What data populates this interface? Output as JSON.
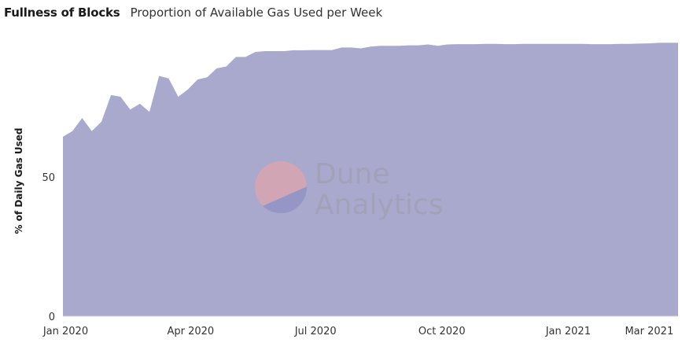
{
  "header": {
    "title": "Fullness of Blocks",
    "subtitle": "Proportion of Available Gas Used per Week"
  },
  "watermark": {
    "line1": "Dune",
    "line2": "Analytics"
  },
  "colors": {
    "area": "#a9a9cd",
    "watermark_top": "#e8a3a8",
    "watermark_bottom": "#8f8fc3"
  },
  "chart_data": {
    "type": "area",
    "title": "Fullness of Blocks",
    "subtitle": "Proportion of Available Gas Used per Week",
    "xlabel": "",
    "ylabel": "% of Daily Gas Used",
    "ylim": [
      0,
      100
    ],
    "xlim": [
      "2019-12-30",
      "2021-03-22"
    ],
    "grid": false,
    "y_ticks": [
      0,
      50
    ],
    "x_ticks": [
      {
        "date": "2020-01-01",
        "label": "Jan 2020"
      },
      {
        "date": "2020-04-01",
        "label": "Apr 2020"
      },
      {
        "date": "2020-07-01",
        "label": "Jul 2020"
      },
      {
        "date": "2020-10-01",
        "label": "Oct 2020"
      },
      {
        "date": "2021-01-01",
        "label": "Jan 2021"
      },
      {
        "date": "2021-03-01",
        "label": "Mar 2021"
      }
    ],
    "series": [
      {
        "values": [
          [
            "2019-12-30",
            64.5
          ],
          [
            "2020-01-06",
            66.5
          ],
          [
            "2020-01-13",
            71.2
          ],
          [
            "2020-01-20",
            66.5
          ],
          [
            "2020-01-27",
            69.8
          ],
          [
            "2020-02-03",
            79.4
          ],
          [
            "2020-02-10",
            78.8
          ],
          [
            "2020-02-17",
            74.2
          ],
          [
            "2020-02-24",
            76.3
          ],
          [
            "2020-03-02",
            73.4
          ],
          [
            "2020-03-09",
            86.3
          ],
          [
            "2020-03-16",
            85.4
          ],
          [
            "2020-03-23",
            78.8
          ],
          [
            "2020-03-30",
            81.4
          ],
          [
            "2020-04-06",
            85.0
          ],
          [
            "2020-04-13",
            85.8
          ],
          [
            "2020-04-20",
            89.0
          ],
          [
            "2020-04-27",
            89.7
          ],
          [
            "2020-05-04",
            93.1
          ],
          [
            "2020-05-11",
            93.1
          ],
          [
            "2020-05-18",
            94.9
          ],
          [
            "2020-05-25",
            95.2
          ],
          [
            "2020-06-01",
            95.2
          ],
          [
            "2020-06-08",
            95.2
          ],
          [
            "2020-06-15",
            95.5
          ],
          [
            "2020-06-22",
            95.5
          ],
          [
            "2020-06-29",
            95.6
          ],
          [
            "2020-07-06",
            95.6
          ],
          [
            "2020-07-13",
            95.6
          ],
          [
            "2020-07-20",
            96.5
          ],
          [
            "2020-07-27",
            96.5
          ],
          [
            "2020-08-03",
            96.2
          ],
          [
            "2020-08-10",
            96.8
          ],
          [
            "2020-08-17",
            97.1
          ],
          [
            "2020-08-24",
            97.1
          ],
          [
            "2020-08-31",
            97.1
          ],
          [
            "2020-09-07",
            97.3
          ],
          [
            "2020-09-14",
            97.3
          ],
          [
            "2020-09-21",
            97.6
          ],
          [
            "2020-09-28",
            97.1
          ],
          [
            "2020-10-05",
            97.6
          ],
          [
            "2020-10-12",
            97.7
          ],
          [
            "2020-10-19",
            97.7
          ],
          [
            "2020-10-26",
            97.7
          ],
          [
            "2020-11-02",
            97.8
          ],
          [
            "2020-11-09",
            97.8
          ],
          [
            "2020-11-16",
            97.7
          ],
          [
            "2020-11-23",
            97.7
          ],
          [
            "2020-11-30",
            97.8
          ],
          [
            "2020-12-07",
            97.8
          ],
          [
            "2020-12-14",
            97.8
          ],
          [
            "2020-12-21",
            97.8
          ],
          [
            "2020-12-28",
            97.8
          ],
          [
            "2021-01-04",
            97.8
          ],
          [
            "2021-01-11",
            97.8
          ],
          [
            "2021-01-18",
            97.7
          ],
          [
            "2021-01-25",
            97.7
          ],
          [
            "2021-02-01",
            97.7
          ],
          [
            "2021-02-08",
            97.8
          ],
          [
            "2021-02-15",
            97.8
          ],
          [
            "2021-02-22",
            97.9
          ],
          [
            "2021-03-01",
            98.0
          ],
          [
            "2021-03-08",
            98.2
          ],
          [
            "2021-03-15",
            98.2
          ],
          [
            "2021-03-22",
            98.2
          ]
        ]
      }
    ]
  }
}
